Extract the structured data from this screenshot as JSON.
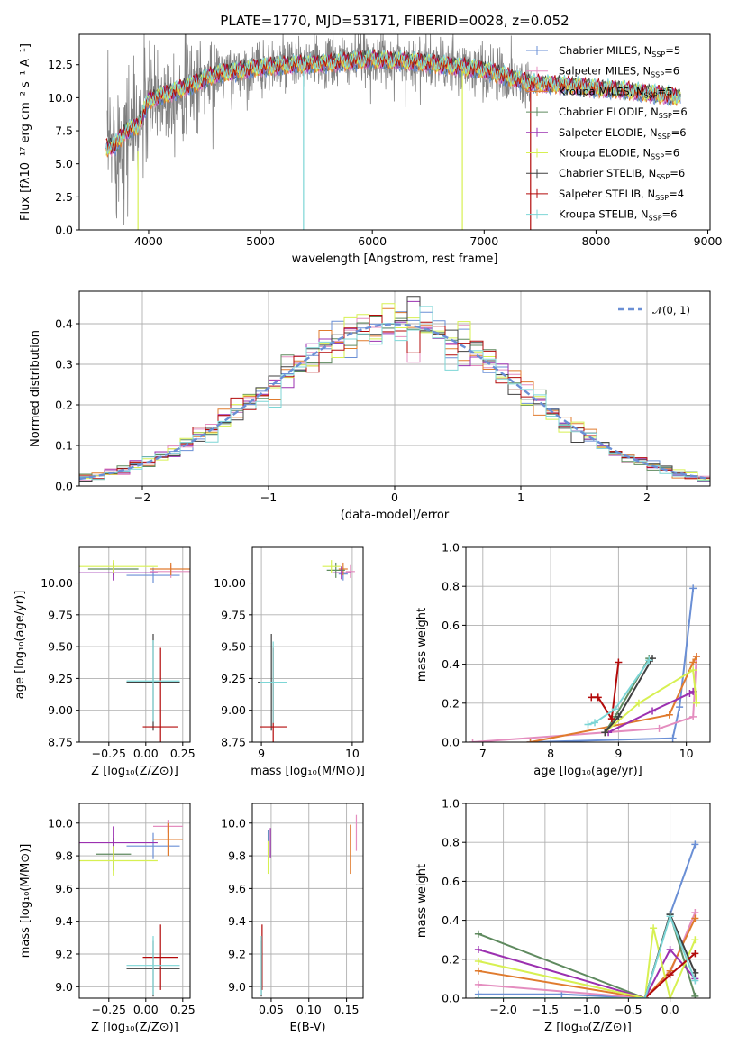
{
  "colors": [
    "#6a8fd5",
    "#e48dbf",
    "#e07b2e",
    "#5f8a5f",
    "#9b30b0",
    "#d7f052",
    "#404040",
    "#b30a0a",
    "#7dd6d6"
  ],
  "chart_data": [
    {
      "type": "line",
      "panel": "spectrum",
      "title": "PLATE=1770, MJD=53171, FIBERID=0028, z=0.052",
      "xlabel": "wavelength [Angstrom, rest frame]",
      "ylabel": "Flux [fλ10⁻¹⁷ erg cm⁻² s⁻¹ A⁻¹]",
      "xlim": [
        3380,
        9020
      ],
      "ylim": [
        0,
        14.8
      ],
      "xticks": [
        4000,
        5000,
        6000,
        7000,
        8000,
        9000
      ],
      "yticks": [
        0.0,
        2.5,
        5.0,
        7.5,
        10.0,
        12.5
      ],
      "ytick_labels": [
        "0.0",
        "2.5",
        "5.0",
        "7.5",
        "10.0",
        "12.5"
      ],
      "data_range": [
        3630,
        7420
      ],
      "model_anchor_x": [
        3630,
        3700,
        3800,
        3900,
        4000,
        4200,
        4400,
        4600,
        4800,
        5000,
        5300,
        5600,
        6000,
        6400,
        6800,
        7000,
        7200,
        7400,
        7600,
        7800,
        8000,
        8200,
        8400,
        8600,
        8750
      ],
      "model_anchor_y": [
        6.2,
        6.4,
        7.5,
        7.8,
        9.8,
        10.4,
        11.0,
        11.8,
        12.0,
        12.3,
        12.5,
        12.6,
        12.9,
        12.7,
        12.3,
        12.1,
        11.6,
        11.1,
        11.0,
        10.9,
        10.7,
        10.6,
        10.4,
        10.2,
        10.0
      ],
      "legend": [
        {
          "name": "Chabrier MILES",
          "nssp": "5"
        },
        {
          "name": "Salpeter MILES",
          "nssp": "6"
        },
        {
          "name": "Kroupa MILES",
          "nssp": "5"
        },
        {
          "name": "Chabrier ELODIE",
          "nssp": "6"
        },
        {
          "name": "Salpeter ELODIE",
          "nssp": "6"
        },
        {
          "name": "Kroupa ELODIE",
          "nssp": "6"
        },
        {
          "name": "Chabrier STELIB",
          "nssp": "6"
        },
        {
          "name": "Salpeter STELIB",
          "nssp": "4"
        },
        {
          "name": "Kroupa STELIB",
          "nssp": "6"
        }
      ],
      "legend_position": "right"
    },
    {
      "type": "histogram",
      "panel": "residuals",
      "xlabel": "(data-model)/error",
      "ylabel": "Normed distribution",
      "xlim": [
        -2.5,
        2.5
      ],
      "ylim": [
        0,
        0.48
      ],
      "xticks": [
        -2,
        -1,
        0,
        1,
        2
      ],
      "xtick_labels": [
        "−2",
        "−1",
        "0",
        "1",
        "2"
      ],
      "yticks": [
        0.0,
        0.1,
        0.2,
        0.3,
        0.4
      ],
      "ytick_labels": [
        "0.0",
        "0.1",
        "0.2",
        "0.3",
        "0.4"
      ],
      "bin_width": 0.1,
      "legend": "𝒩(0, 1)",
      "reference_curve": "normal(0,1)",
      "grid": true
    },
    {
      "type": "scatter",
      "panel": "age-vs-Z",
      "xlabel": "Z [log₁₀(Z/Z⊙)]",
      "ylabel": "age  [log₁₀(age/yr)]",
      "xlim": [
        -0.45,
        0.3
      ],
      "ylim": [
        8.75,
        10.28
      ],
      "xticks": [
        -0.25,
        0.0,
        0.25
      ],
      "xtick_labels": [
        "−0.25",
        "0.00",
        "0.25"
      ],
      "yticks": [
        8.75,
        9.0,
        9.25,
        9.5,
        9.75,
        10.0
      ],
      "ytick_labels": [
        "8.75",
        "9.00",
        "9.25",
        "9.50",
        "9.75",
        "10.00"
      ],
      "points": [
        {
          "x": 0.05,
          "y": 10.06,
          "xerr": 0.18,
          "yerr": 0.06,
          "c": 0
        },
        {
          "x": 0.17,
          "y": 10.09,
          "xerr": 0.14,
          "yerr": 0.05,
          "c": 1
        },
        {
          "x": 0.17,
          "y": 10.11,
          "xerr": 0.14,
          "yerr": 0.05,
          "c": 2
        },
        {
          "x": -0.22,
          "y": 10.11,
          "xerr": 0.17,
          "yerr": 0.05,
          "c": 3
        },
        {
          "x": -0.22,
          "y": 10.08,
          "xerr": 0.3,
          "yerr": 0.06,
          "c": 4
        },
        {
          "x": -0.22,
          "y": 10.13,
          "xerr": 0.3,
          "yerr": 0.05,
          "c": 5
        },
        {
          "x": 0.05,
          "y": 9.22,
          "xerr": 0.18,
          "yerr": 0.38,
          "c": 6
        },
        {
          "x": 0.1,
          "y": 8.87,
          "xerr": 0.12,
          "yerr": 0.62,
          "c": 7
        },
        {
          "x": 0.05,
          "y": 9.23,
          "xerr": 0.18,
          "yerr": 0.32,
          "c": 8
        }
      ]
    },
    {
      "type": "scatter",
      "panel": "age-vs-mass",
      "xlabel": "mass [log₁₀(M/M⊙)]",
      "ylabel": "",
      "xlim": [
        8.9,
        10.12
      ],
      "ylim": [
        8.75,
        10.28
      ],
      "xticks": [
        9,
        10
      ],
      "xtick_labels": [
        "9",
        "10"
      ],
      "yticks": [
        8.75,
        9.0,
        9.25,
        9.5,
        9.75,
        10.0
      ],
      "ytick_labels": [
        "8.75",
        "9.00",
        "9.25",
        "9.50",
        "9.75",
        "10.00"
      ],
      "points": [
        {
          "x": 9.9,
          "y": 10.07,
          "xerr": 0.05,
          "yerr": 0.05,
          "c": 0
        },
        {
          "x": 9.98,
          "y": 10.09,
          "xerr": 0.05,
          "yerr": 0.05,
          "c": 1
        },
        {
          "x": 9.9,
          "y": 10.11,
          "xerr": 0.05,
          "yerr": 0.05,
          "c": 2
        },
        {
          "x": 9.82,
          "y": 10.1,
          "xerr": 0.1,
          "yerr": 0.06,
          "c": 3
        },
        {
          "x": 9.88,
          "y": 10.08,
          "xerr": 0.1,
          "yerr": 0.05,
          "c": 4
        },
        {
          "x": 9.77,
          "y": 10.13,
          "xerr": 0.1,
          "yerr": 0.05,
          "c": 5
        },
        {
          "x": 9.11,
          "y": 9.22,
          "xerr": 0.15,
          "yerr": 0.38,
          "c": 6
        },
        {
          "x": 9.13,
          "y": 8.87,
          "xerr": 0.15,
          "yerr": 0.62,
          "c": 7
        },
        {
          "x": 9.13,
          "y": 9.22,
          "xerr": 0.15,
          "yerr": 0.32,
          "c": 8
        }
      ]
    },
    {
      "type": "line",
      "panel": "mass-weight-vs-age",
      "xlabel": "age  [log₁₀(age/yr)]",
      "ylabel": "mass weight",
      "xlim": [
        6.75,
        10.35
      ],
      "ylim": [
        0,
        1.0
      ],
      "xticks": [
        7,
        8,
        9,
        10
      ],
      "xtick_labels": [
        "7",
        "8",
        "9",
        "10"
      ],
      "yticks": [
        0.0,
        0.2,
        0.4,
        0.6,
        0.8,
        1.0
      ],
      "ytick_labels": [
        "0.0",
        "0.2",
        "0.4",
        "0.6",
        "0.8",
        "1.0"
      ],
      "series": [
        {
          "c": 0,
          "x": [
            7.7,
            9.8,
            9.9,
            10.1
          ],
          "y": [
            0.0,
            0.02,
            0.18,
            0.79
          ]
        },
        {
          "c": 1,
          "x": [
            6.85,
            9.6,
            10.1,
            10.15
          ],
          "y": [
            0.0,
            0.07,
            0.13,
            0.44
          ]
        },
        {
          "c": 2,
          "x": [
            7.7,
            9.75,
            10.1,
            10.15
          ],
          "y": [
            0.0,
            0.14,
            0.41,
            0.44
          ]
        },
        {
          "c": 3,
          "x": [
            8.8,
            8.95,
            9.45
          ],
          "y": [
            0.05,
            0.13,
            0.43
          ]
        },
        {
          "c": 4,
          "x": [
            8.85,
            9.5,
            10.05,
            10.1
          ],
          "y": [
            0.05,
            0.16,
            0.25,
            0.26
          ]
        },
        {
          "c": 5,
          "x": [
            8.8,
            9.3,
            10.1,
            10.15
          ],
          "y": [
            0.05,
            0.2,
            0.37,
            0.2
          ]
        },
        {
          "c": 6,
          "x": [
            8.8,
            9.0,
            9.5
          ],
          "y": [
            0.05,
            0.13,
            0.43
          ]
        },
        {
          "c": 7,
          "x": [
            8.6,
            8.7,
            8.9,
            9.0
          ],
          "y": [
            0.23,
            0.23,
            0.12,
            0.41
          ]
        },
        {
          "c": 8,
          "x": [
            8.55,
            8.65,
            8.95,
            9.45
          ],
          "y": [
            0.09,
            0.1,
            0.17,
            0.42
          ]
        }
      ]
    },
    {
      "type": "scatter",
      "panel": "mass-vs-Z",
      "xlabel": "Z [log₁₀(Z/Z⊙)]",
      "ylabel": "mass [log₁₀(M/M⊙)]",
      "xlim": [
        -0.45,
        0.3
      ],
      "ylim": [
        8.93,
        10.12
      ],
      "xticks": [
        -0.25,
        0.0,
        0.25
      ],
      "xtick_labels": [
        "−0.25",
        "0.00",
        "0.25"
      ],
      "yticks": [
        9.0,
        9.2,
        9.4,
        9.6,
        9.8,
        10.0
      ],
      "ytick_labels": [
        "9.0",
        "9.2",
        "9.4",
        "9.6",
        "9.8",
        "10.0"
      ],
      "points": [
        {
          "x": 0.05,
          "y": 9.86,
          "xerr": 0.18,
          "yerr": 0.08,
          "c": 0
        },
        {
          "x": 0.15,
          "y": 9.98,
          "xerr": 0.1,
          "yerr": 0.04,
          "c": 1
        },
        {
          "x": 0.15,
          "y": 9.9,
          "xerr": 0.1,
          "yerr": 0.1,
          "c": 2
        },
        {
          "x": -0.22,
          "y": 9.81,
          "xerr": 0.12,
          "yerr": 0.1,
          "c": 3
        },
        {
          "x": -0.22,
          "y": 9.88,
          "xerr": 0.3,
          "yerr": 0.1,
          "c": 4
        },
        {
          "x": -0.22,
          "y": 9.77,
          "xerr": 0.3,
          "yerr": 0.09,
          "c": 5
        },
        {
          "x": 0.05,
          "y": 9.11,
          "xerr": 0.18,
          "yerr": 0.17,
          "c": 6
        },
        {
          "x": 0.1,
          "y": 9.18,
          "xerr": 0.12,
          "yerr": 0.2,
          "c": 7
        },
        {
          "x": 0.05,
          "y": 9.13,
          "xerr": 0.18,
          "yerr": 0.18,
          "c": 8
        }
      ]
    },
    {
      "type": "scatter",
      "panel": "mass-vs-ebv",
      "xlabel": "E(B-V)",
      "ylabel": "",
      "xlim": [
        0.025,
        0.172
      ],
      "ylim": [
        8.93,
        10.12
      ],
      "xticks": [
        0.05,
        0.1,
        0.15
      ],
      "xtick_labels": [
        "0.05",
        "0.10",
        "0.15"
      ],
      "yticks": [
        9.0,
        9.2,
        9.4,
        9.6,
        9.8,
        10.0
      ],
      "ytick_labels": [
        "9.0",
        "9.2",
        "9.4",
        "9.6",
        "9.8",
        "10.0"
      ],
      "points": [
        {
          "x": 0.046,
          "y": 9.87,
          "xerr": 0.0,
          "yerr": 0.09,
          "c": 0
        },
        {
          "x": 0.163,
          "y": 9.94,
          "xerr": 0.0,
          "yerr": 0.11,
          "c": 1
        },
        {
          "x": 0.155,
          "y": 9.84,
          "xerr": 0.0,
          "yerr": 0.15,
          "c": 2
        },
        {
          "x": 0.047,
          "y": 9.87,
          "xerr": 0.0,
          "yerr": 0.09,
          "c": 3
        },
        {
          "x": 0.049,
          "y": 9.88,
          "xerr": 0.0,
          "yerr": 0.09,
          "c": 4
        },
        {
          "x": 0.046,
          "y": 9.79,
          "xerr": 0.0,
          "yerr": 0.1,
          "c": 5
        },
        {
          "x": 0.037,
          "y": 9.11,
          "xerr": 0.0,
          "yerr": 0.17,
          "c": 6
        },
        {
          "x": 0.038,
          "y": 9.18,
          "xerr": 0.0,
          "yerr": 0.2,
          "c": 7
        },
        {
          "x": 0.037,
          "y": 9.13,
          "xerr": 0.0,
          "yerr": 0.18,
          "c": 8
        }
      ]
    },
    {
      "type": "line",
      "panel": "mass-weight-vs-Z",
      "xlabel": "Z [log₁₀(Z/Z⊙)]",
      "ylabel": "mass weight",
      "xlim": [
        -2.45,
        0.48
      ],
      "ylim": [
        0,
        1.0
      ],
      "xticks": [
        -2.0,
        -1.5,
        -1.0,
        -0.5,
        0.0
      ],
      "xtick_labels": [
        "−2.0",
        "−1.5",
        "−1.0",
        "−0.5",
        "0.0"
      ],
      "yticks": [
        0.0,
        0.2,
        0.4,
        0.6,
        0.8,
        1.0
      ],
      "ytick_labels": [
        "0.0",
        "0.2",
        "0.4",
        "0.6",
        "0.8",
        "1.0"
      ],
      "series": [
        {
          "c": 0,
          "x": [
            -2.3,
            -1.3,
            -0.3,
            0.0,
            0.3
          ],
          "y": [
            0.02,
            0.02,
            0.0,
            0.43,
            0.79
          ]
        },
        {
          "c": 1,
          "x": [
            -2.3,
            -0.3,
            0.0,
            0.3
          ],
          "y": [
            0.07,
            0.0,
            0.13,
            0.44
          ]
        },
        {
          "c": 2,
          "x": [
            -2.3,
            -0.3,
            0.0,
            0.3
          ],
          "y": [
            0.14,
            0.0,
            0.14,
            0.41
          ]
        },
        {
          "c": 3,
          "x": [
            -2.3,
            -0.3,
            0.0,
            0.3
          ],
          "y": [
            0.33,
            0.0,
            0.43,
            0.01
          ]
        },
        {
          "c": 4,
          "x": [
            -2.3,
            -0.3,
            0.0,
            0.3
          ],
          "y": [
            0.25,
            0.0,
            0.25,
            0.1
          ]
        },
        {
          "c": 5,
          "x": [
            -2.3,
            -0.3,
            -0.2,
            0.0,
            0.3
          ],
          "y": [
            0.19,
            0.0,
            0.36,
            0.0,
            0.3
          ]
        },
        {
          "c": 6,
          "x": [
            -2.3,
            -0.3,
            0.0,
            0.3
          ],
          "y": [
            0.0,
            0.0,
            0.43,
            0.13
          ]
        },
        {
          "c": 7,
          "x": [
            -0.3,
            0.0,
            0.3
          ],
          "y": [
            0.0,
            0.12,
            0.23
          ]
        },
        {
          "c": 8,
          "x": [
            -2.3,
            -0.3,
            0.0,
            0.3
          ],
          "y": [
            0.0,
            0.0,
            0.42,
            0.09
          ]
        }
      ]
    }
  ]
}
